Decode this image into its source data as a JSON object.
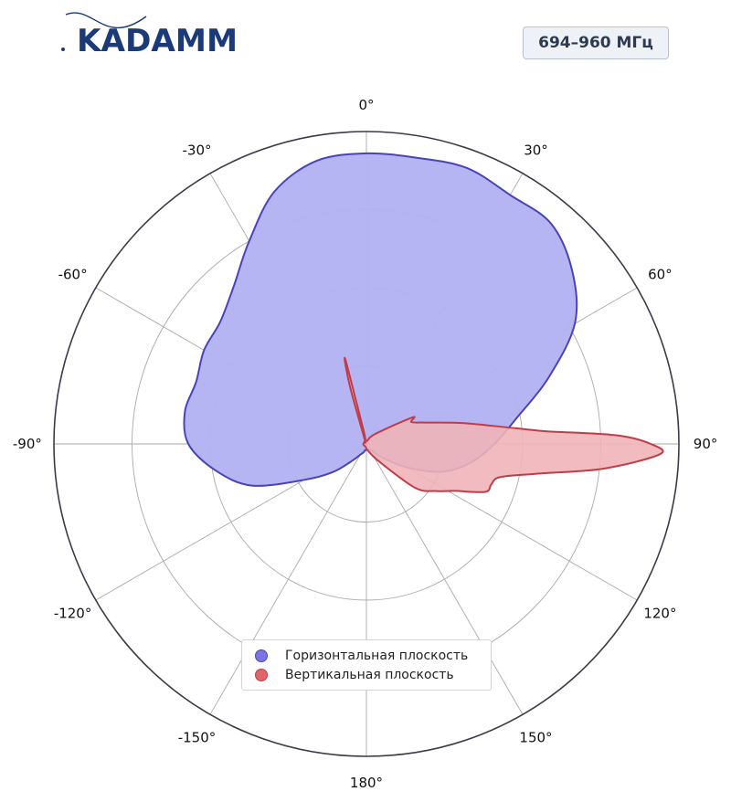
{
  "logo": {
    "text": "KADAMM"
  },
  "badge": {
    "frequency_range": "694–960 МГц"
  },
  "colors": {
    "horizontal_fill": "#b3b3f3",
    "horizontal_stroke": "#4a43b8",
    "vertical_fill": "#f0b4b8",
    "vertical_stroke": "#bf3d48",
    "legend_h_marker": "#7b74e6",
    "legend_v_marker": "#e0646b",
    "grid": "#aaaaaa",
    "outer_ring": "#3b3b47",
    "logo": "#1a3a78"
  },
  "chart_data": {
    "type": "polar",
    "title": "",
    "theta_unit": "deg",
    "theta_zero": "top",
    "theta_direction": "clockwise",
    "theta_ticks": [
      "0°",
      "30°",
      "60°",
      "90°",
      "120°",
      "150°",
      "180°",
      "-150°",
      "-120°",
      "-90°",
      "-60°",
      "-30°"
    ],
    "r_range": [
      0,
      1
    ],
    "r_grid": [
      0.25,
      0.5,
      0.75
    ],
    "grid": true,
    "legend_position": "bottom-center",
    "series": [
      {
        "name": "Горизонтальная плоскость",
        "theta": [
          0,
          10,
          20,
          30,
          40,
          50,
          60,
          70,
          80,
          90,
          100,
          110,
          120,
          130,
          140,
          150,
          160,
          170,
          180,
          -170,
          -160,
          -150,
          -140,
          -130,
          -120,
          -110,
          -100,
          -90,
          -80,
          -70,
          -60,
          -50,
          -40,
          -30,
          -20,
          -10
        ],
        "r": [
          0.93,
          0.93,
          0.94,
          0.92,
          0.92,
          0.86,
          0.77,
          0.62,
          0.49,
          0.41,
          0.34,
          0.26,
          0.15,
          0.07,
          0.03,
          0.02,
          0.02,
          0.02,
          0.02,
          0.02,
          0.03,
          0.04,
          0.07,
          0.14,
          0.23,
          0.39,
          0.49,
          0.57,
          0.59,
          0.58,
          0.6,
          0.61,
          0.66,
          0.75,
          0.86,
          0.92
        ]
      },
      {
        "name": "Вертикальная плоскость",
        "theta": [
          -20,
          -16,
          -14,
          -12,
          0,
          40,
          60,
          64,
          70,
          78,
          84,
          86,
          88,
          90,
          92,
          96,
          100,
          104,
          108,
          112,
          118,
          124,
          132,
          144,
          170,
          -170,
          -100,
          -40
        ],
        "r": [
          0.02,
          0.19,
          0.28,
          0.05,
          0.01,
          0.04,
          0.17,
          0.16,
          0.2,
          0.32,
          0.48,
          0.58,
          0.8,
          0.91,
          0.94,
          0.76,
          0.55,
          0.44,
          0.42,
          0.41,
          0.32,
          0.27,
          0.21,
          0.07,
          0.02,
          0.01,
          0.01,
          0.01
        ]
      }
    ]
  }
}
